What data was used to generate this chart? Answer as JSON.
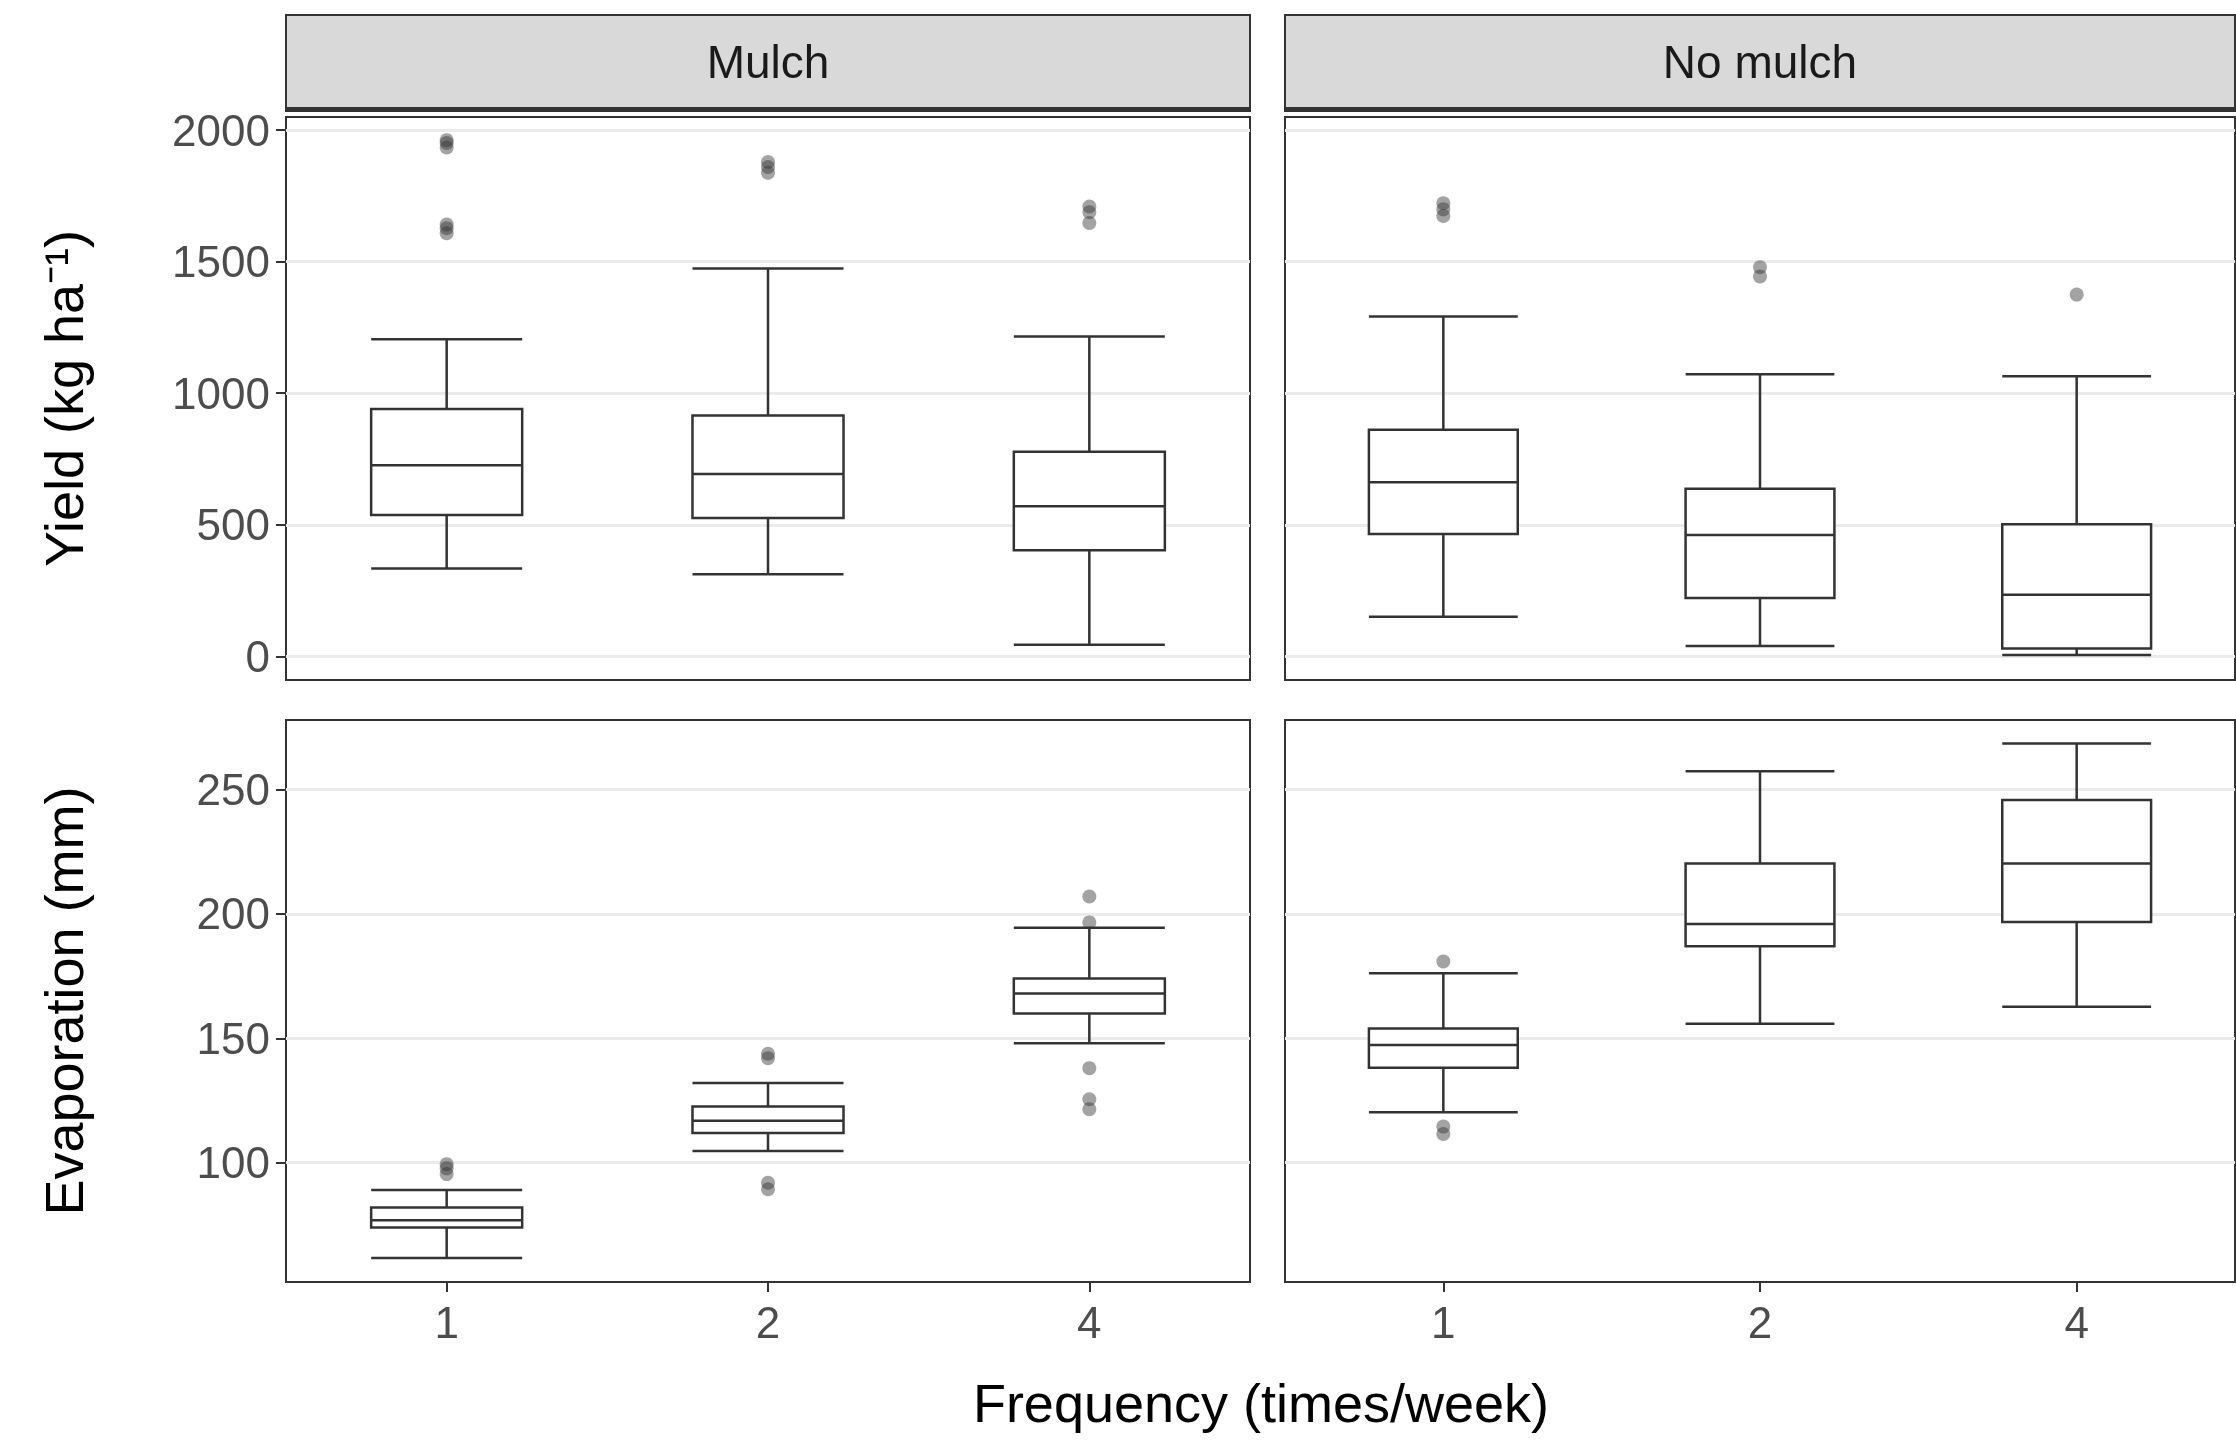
{
  "chart_data": [
    {
      "type": "box",
      "title": "Mulch",
      "ylabel": "Yield (kg ha⁻¹)",
      "categories": [
        "1",
        "2",
        "4"
      ],
      "series": [
        {
          "color": "#333333",
          "boxes": [
            {
              "low": 334,
              "q1": 537,
              "median": 726,
              "q3": 940,
              "high": 1205,
              "outliers": [
                1962,
                1951,
                1934,
                1641,
                1627,
                1608
              ]
            },
            {
              "low": 312,
              "q1": 526,
              "median": 693,
              "q3": 915,
              "high": 1474,
              "outliers": [
                1879,
                1860,
                1838
              ]
            },
            {
              "low": 44,
              "q1": 403,
              "median": 570,
              "q3": 778,
              "high": 1216,
              "outliers": [
                1710,
                1688,
                1647
              ]
            }
          ]
        }
      ],
      "ylim": [
        -90,
        2050
      ],
      "yticks": [
        0,
        500,
        1000,
        1500,
        2000
      ],
      "grid": "y",
      "tick_labels": "y"
    },
    {
      "type": "box",
      "title": "No mulch",
      "categories": [
        "1",
        "2",
        "4"
      ],
      "series": [
        {
          "color": "#333333",
          "boxes": [
            {
              "low": 150,
              "q1": 465,
              "median": 662,
              "q3": 861,
              "high": 1292,
              "outliers": [
                1722,
                1699,
                1674
              ]
            },
            {
              "low": 39,
              "q1": 222,
              "median": 461,
              "q3": 637,
              "high": 1072,
              "outliers": [
                1479,
                1444
              ]
            },
            {
              "low": 5,
              "q1": 30,
              "median": 234,
              "q3": 502,
              "high": 1065,
              "outliers": [
                1375
              ]
            }
          ]
        }
      ],
      "ylim": [
        -90,
        2050
      ],
      "yticks": [
        0,
        500,
        1000,
        1500,
        2000
      ],
      "grid": "y",
      "tick_labels": false
    },
    {
      "type": "box",
      "ylabel": "Evaporation (mm)",
      "xlabel": "Frequency (times/week)",
      "categories": [
        "1",
        "2",
        "4"
      ],
      "series": [
        {
          "color": "#333333",
          "boxes": [
            {
              "low": 61.7,
              "q1": 73.9,
              "median": 76.8,
              "q3": 82,
              "high": 89,
              "outliers": [
                99.4,
                97.7,
                95.4
              ]
            },
            {
              "low": 104.7,
              "q1": 111.9,
              "median": 116.8,
              "q3": 122.6,
              "high": 132,
              "outliers": [
                143.8,
                142,
                91.9,
                89.3
              ]
            },
            {
              "low": 148,
              "q1": 160,
              "median": 168,
              "q3": 174,
              "high": 194.5,
              "outliers": [
                207,
                196.6,
                138,
                125.5,
                121.5
              ]
            }
          ]
        }
      ],
      "ylim": [
        52,
        278
      ],
      "yticks": [
        100,
        150,
        200,
        250
      ],
      "grid": "y"
    },
    {
      "type": "box",
      "categories": [
        "1",
        "2",
        "4"
      ],
      "series": [
        {
          "color": "#333333",
          "boxes": [
            {
              "low": 120.3,
              "q1": 138.2,
              "median": 147.3,
              "q3": 153.9,
              "high": 176.2,
              "outliers": [
                180.9,
                114.5,
                111.5
              ]
            },
            {
              "low": 155.9,
              "q1": 187,
              "median": 196,
              "q3": 220.3,
              "high": 257.4
            },
            {
              "low": 162.7,
              "q1": 196.8,
              "median": 220.3,
              "q3": 245.8,
              "high": 268.6
            }
          ]
        }
      ],
      "ylim": [
        52,
        278
      ],
      "yticks": [
        100,
        150,
        200,
        250
      ],
      "grid": "y",
      "tick_labels": "x"
    }
  ]
}
